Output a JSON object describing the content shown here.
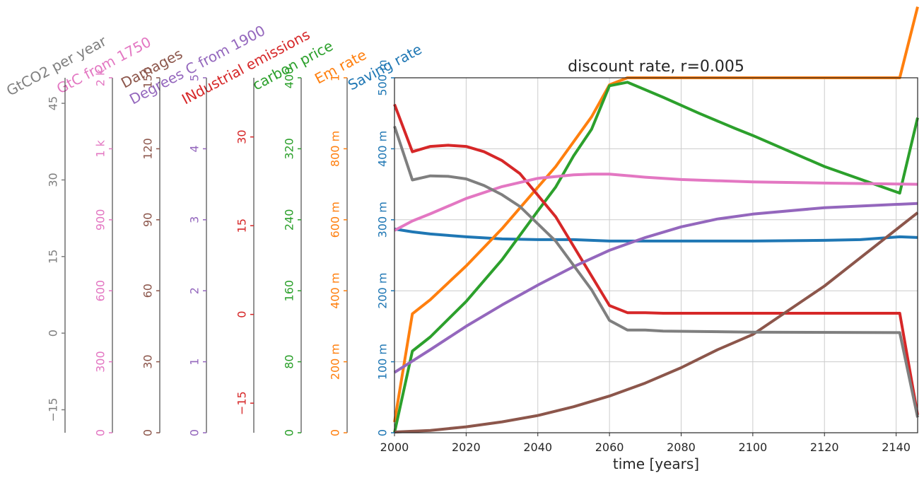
{
  "chart_data": {
    "type": "line",
    "title": "discount rate, r=0.005",
    "xlabel": "time [years]",
    "xlim": [
      2000,
      2146
    ],
    "x_ticks": [
      {
        "value": 2000,
        "label": "2000"
      },
      {
        "value": 2020,
        "label": "2020"
      },
      {
        "value": 2040,
        "label": "2040"
      },
      {
        "value": 2060,
        "label": "2060"
      },
      {
        "value": 2080,
        "label": "2080"
      },
      {
        "value": 2100,
        "label": "2100"
      },
      {
        "value": 2120,
        "label": "2120"
      },
      {
        "value": 2140,
        "label": "2140"
      }
    ],
    "grid": true,
    "axes": [
      {
        "key": "saving",
        "label": "Saving rate",
        "color": "#1f77b4",
        "ylim": [
          0,
          0.5
        ],
        "ticks": [
          {
            "value": 0,
            "label": "0"
          },
          {
            "value": 0.1,
            "label": "100 m"
          },
          {
            "value": 0.2,
            "label": "200 m"
          },
          {
            "value": 0.3,
            "label": "300 m"
          },
          {
            "value": 0.4,
            "label": "400 m"
          },
          {
            "value": 0.5,
            "label": "500 m"
          }
        ]
      },
      {
        "key": "em",
        "label": "Em rate",
        "color": "#ff7f0e",
        "ylim": [
          0,
          1
        ],
        "ticks": [
          {
            "value": 0,
            "label": "0"
          },
          {
            "value": 0.2,
            "label": "200 m"
          },
          {
            "value": 0.4,
            "label": "400 m"
          },
          {
            "value": 0.6,
            "label": "600 m"
          },
          {
            "value": 0.8,
            "label": "800 m"
          },
          {
            "value": 1,
            "label": "1"
          }
        ]
      },
      {
        "key": "carbon",
        "label": "carbon price",
        "color": "#2ca02c",
        "ylim": [
          0,
          400
        ],
        "ticks": [
          {
            "value": 0,
            "label": "0"
          },
          {
            "value": 80,
            "label": "80"
          },
          {
            "value": 160,
            "label": "160"
          },
          {
            "value": 240,
            "label": "240"
          },
          {
            "value": 320,
            "label": "320"
          },
          {
            "value": 400,
            "label": "400"
          }
        ]
      },
      {
        "key": "industrial",
        "label": "INdustrial emissions",
        "color": "#d62728",
        "ylim": [
          -20,
          40
        ],
        "ticks": [
          {
            "value": -15,
            "label": "−15"
          },
          {
            "value": 0,
            "label": "0"
          },
          {
            "value": 15,
            "label": "15"
          },
          {
            "value": 30,
            "label": "30"
          }
        ]
      },
      {
        "key": "degrees",
        "label": "Degrees C from 1900",
        "color": "#9467bd",
        "ylim": [
          0,
          5
        ],
        "ticks": [
          {
            "value": 0,
            "label": "0"
          },
          {
            "value": 1,
            "label": "1"
          },
          {
            "value": 2,
            "label": "2"
          },
          {
            "value": 3,
            "label": "3"
          },
          {
            "value": 4,
            "label": "4"
          },
          {
            "value": 5,
            "label": "5"
          }
        ]
      },
      {
        "key": "damages",
        "label": "Damages",
        "color": "#8c564b",
        "ylim": [
          0,
          150
        ],
        "ticks": [
          {
            "value": 0,
            "label": "0"
          },
          {
            "value": 30,
            "label": "30"
          },
          {
            "value": 60,
            "label": "60"
          },
          {
            "value": 90,
            "label": "90"
          },
          {
            "value": 120,
            "label": "120"
          },
          {
            "value": 150,
            "label": "150"
          }
        ]
      },
      {
        "key": "gtc",
        "label": "GtC from 1750",
        "color": "#e377c2",
        "ylim": [
          0,
          1500
        ],
        "ticks": [
          {
            "value": 0,
            "label": "0"
          },
          {
            "value": 300,
            "label": "300"
          },
          {
            "value": 600,
            "label": "600"
          },
          {
            "value": 900,
            "label": "900"
          },
          {
            "value": 1200,
            "label": "1 k"
          },
          {
            "value": 1500,
            "label": "2 k"
          }
        ]
      },
      {
        "key": "gtco2",
        "label": "GtCO2 per year",
        "color": "#7f7f7f",
        "ylim": [
          -19.5,
          50
        ],
        "ticks": [
          {
            "value": -15,
            "label": "−15"
          },
          {
            "value": 0,
            "label": "0"
          },
          {
            "value": 15,
            "label": "15"
          },
          {
            "value": 30,
            "label": "30"
          },
          {
            "value": 45,
            "label": "45"
          }
        ]
      }
    ],
    "series": [
      {
        "name": "Saving rate",
        "axis": "saving",
        "x": [
          2000,
          2005,
          2010,
          2015,
          2020,
          2030,
          2040,
          2050,
          2060,
          2080,
          2100,
          2120,
          2130,
          2141,
          2146
        ],
        "values": [
          0.287,
          0.283,
          0.28,
          0.278,
          0.276,
          0.273,
          0.272,
          0.272,
          0.27,
          0.27,
          0.27,
          0.271,
          0.272,
          0.276,
          0.275
        ]
      },
      {
        "name": "Em rate",
        "axis": "em",
        "x": [
          2000,
          2005,
          2010,
          2020,
          2030,
          2045,
          2055,
          2060,
          2065,
          2070,
          2080,
          2100,
          2120,
          2141,
          2146
        ],
        "values": [
          0.03,
          0.335,
          0.375,
          0.47,
          0.575,
          0.75,
          0.89,
          0.98,
          1.0,
          1.0,
          1.0,
          1.0,
          1.0,
          1.0,
          1.2
        ]
      },
      {
        "name": "carbon price",
        "axis": "carbon",
        "x": [
          2000,
          2005,
          2010,
          2020,
          2030,
          2040,
          2045,
          2050,
          2055,
          2060,
          2065,
          2075,
          2085,
          2095,
          2100,
          2120,
          2141,
          2146
        ],
        "values": [
          0,
          92,
          108,
          148,
          195,
          250,
          277,
          312,
          342,
          391,
          395,
          378,
          360,
          343,
          335,
          300,
          270,
          355
        ]
      },
      {
        "name": "INdustrial emissions",
        "axis": "industrial",
        "x": [
          2000,
          2005,
          2010,
          2015,
          2020,
          2025,
          2030,
          2035,
          2045,
          2055,
          2060,
          2065,
          2070,
          2075,
          2100,
          2141,
          2146
        ],
        "values": [
          35.5,
          27.5,
          28.4,
          28.6,
          28.4,
          27.5,
          26.0,
          23.8,
          16.5,
          6.5,
          1.5,
          0.3,
          0.3,
          0.2,
          0.2,
          0.2,
          -17
        ]
      },
      {
        "name": "Degrees C from 1900",
        "axis": "degrees",
        "x": [
          2000,
          2010,
          2020,
          2030,
          2040,
          2050,
          2060,
          2070,
          2080,
          2090,
          2100,
          2120,
          2146
        ],
        "values": [
          0.85,
          1.17,
          1.5,
          1.8,
          2.08,
          2.34,
          2.57,
          2.75,
          2.9,
          3.01,
          3.08,
          3.17,
          3.23
        ]
      },
      {
        "name": "Damages",
        "axis": "damages",
        "x": [
          2000,
          2010,
          2020,
          2030,
          2040,
          2050,
          2060,
          2070,
          2080,
          2090,
          2100,
          2120,
          2146
        ],
        "values": [
          0.3,
          1.0,
          2.5,
          4.6,
          7.3,
          11.0,
          15.5,
          21,
          27.5,
          35,
          41.5,
          62,
          93
        ]
      },
      {
        "name": "GtC from 1750",
        "axis": "gtc",
        "x": [
          2000,
          2005,
          2010,
          2020,
          2030,
          2040,
          2050,
          2055,
          2060,
          2070,
          2080,
          2100,
          2120,
          2146
        ],
        "values": [
          855,
          895,
          925,
          990,
          1040,
          1075,
          1090,
          1093,
          1093,
          1080,
          1070,
          1060,
          1055,
          1050
        ]
      },
      {
        "name": "GtCO2 per year",
        "axis": "gtco2",
        "x": [
          2000,
          2005,
          2010,
          2015,
          2020,
          2025,
          2030,
          2035,
          2045,
          2055,
          2060,
          2065,
          2070,
          2075,
          2100,
          2141,
          2146
        ],
        "values": [
          40.5,
          30.0,
          30.8,
          30.7,
          30.2,
          28.9,
          27.1,
          24.8,
          18.0,
          8.5,
          2.5,
          0.6,
          0.6,
          0.4,
          0.2,
          0.1,
          -16.5
        ]
      }
    ]
  }
}
